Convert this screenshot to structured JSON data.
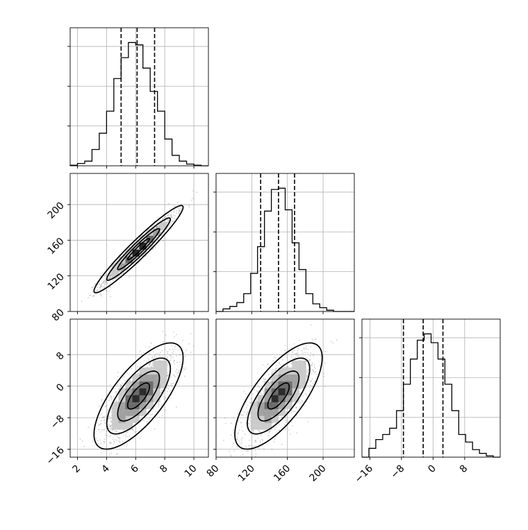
{
  "chart_data": {
    "type": "corner",
    "parameters": [
      {
        "index": 0,
        "range": [
          1.5,
          11.0
        ],
        "quantiles": [
          5.0,
          6.1,
          7.3
        ],
        "ticks": [
          2,
          4,
          6,
          8,
          10
        ],
        "tick_labels": [
          "2",
          "4",
          "6",
          "8",
          "10"
        ]
      },
      {
        "index": 1,
        "range": [
          80,
          235
        ],
        "quantiles": [
          130,
          150,
          168
        ],
        "ticks": [
          80,
          120,
          160,
          200
        ],
        "tick_labels": [
          "80",
          "120",
          "160",
          "200"
        ]
      },
      {
        "index": 2,
        "range": [
          -18.0,
          17.0
        ],
        "quantiles": [
          -7.5,
          -2.5,
          2.5
        ],
        "ticks": [
          -16,
          -8,
          0,
          8
        ],
        "tick_labels": [
          "−16",
          "−8",
          "0",
          "8"
        ]
      }
    ],
    "histograms": [
      {
        "param": 0,
        "bin_edges": [
          1.5,
          2.0,
          2.5,
          3.0,
          3.5,
          4.0,
          4.5,
          5.0,
          5.5,
          6.0,
          6.5,
          7.0,
          7.5,
          8.0,
          8.5,
          9.0,
          9.5,
          10.0,
          10.5,
          11.0
        ],
        "counts": [
          0.5,
          2,
          4,
          14,
          28,
          47,
          75,
          93,
          106,
          104,
          84,
          64,
          47,
          23,
          9,
          4,
          1.5,
          0.5,
          0
        ]
      },
      {
        "param": 1,
        "bin_edges": [
          80,
          87.75,
          95.5,
          103.25,
          111,
          118.75,
          126.5,
          134.25,
          142,
          149.75,
          157.5,
          165.25,
          173,
          180.75,
          188.5,
          196.25,
          204,
          211.75,
          219.5,
          227.25,
          235
        ],
        "counts": [
          0,
          2,
          4,
          7,
          14,
          30,
          51,
          79,
          96,
          97,
          80,
          54,
          33,
          14,
          6,
          3,
          1,
          0,
          0,
          0
        ]
      },
      {
        "param": 2,
        "bin_edges": [
          -18.0,
          -16.25,
          -14.5,
          -12.75,
          -11.0,
          -9.25,
          -7.5,
          -5.75,
          -4.0,
          -2.25,
          -0.5,
          1.25,
          3.0,
          4.75,
          6.5,
          8.25,
          10.0,
          11.75,
          13.5,
          15.25,
          17.0
        ],
        "counts": [
          0,
          7,
          14,
          18,
          23,
          37,
          58,
          78,
          93,
          98,
          91,
          78,
          58,
          37,
          18,
          12,
          6,
          3,
          1,
          0
        ]
      }
    ],
    "pairs": [
      {
        "x_param": 0,
        "y_param": 1,
        "mean": [
          6.2,
          150
        ],
        "sd": [
          1.25,
          20
        ],
        "corr": 0.96
      },
      {
        "x_param": 0,
        "y_param": 2,
        "mean": [
          6.2,
          -2.5
        ],
        "sd": [
          1.25,
          5.5
        ],
        "corr": 0.72
      },
      {
        "x_param": 1,
        "y_param": 2,
        "mean": [
          150,
          -2.5
        ],
        "sd": [
          20,
          5.5
        ],
        "corr": 0.72
      }
    ],
    "contour_levels": [
      0.5,
      1.0,
      1.5,
      2.0
    ],
    "grid": true,
    "colors": {
      "line": "#000000",
      "points": "#7f7f7f",
      "grid": "#b0b0b0"
    }
  }
}
